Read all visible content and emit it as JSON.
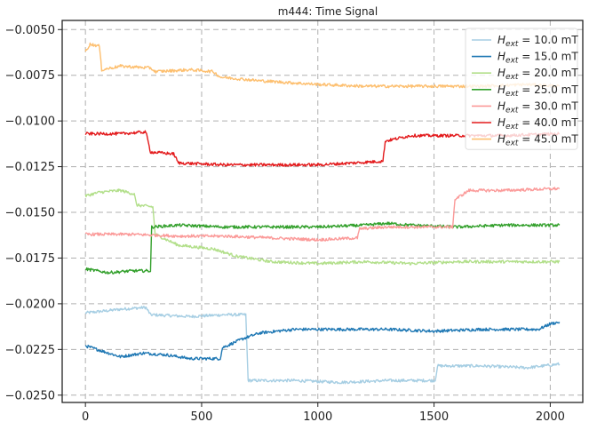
{
  "chart_data": {
    "type": "line",
    "title": "m444: Time Signal",
    "xlabel": "",
    "ylabel": "",
    "xlim": [
      -100,
      2140
    ],
    "ylim": [
      -0.0254,
      -0.0045
    ],
    "xticks": [
      0,
      500,
      1000,
      1500,
      2000
    ],
    "yticks": [
      -0.025,
      -0.0225,
      -0.02,
      -0.0175,
      -0.015,
      -0.0125,
      -0.01,
      -0.0075,
      -0.005
    ],
    "xtick_labels": [
      "0",
      "500",
      "1000",
      "1500",
      "2000"
    ],
    "ytick_labels": [
      "−0.0250",
      "−0.0225",
      "−0.0200",
      "−0.0175",
      "−0.0150",
      "−0.0125",
      "−0.0100",
      "−0.0075",
      "−0.0050"
    ],
    "grid": true,
    "legend_position": "top-right",
    "series": [
      {
        "name": "H_ext = 10.0 mT",
        "label_main": "H",
        "label_sub": "ext",
        "label_rest": " = 10.0 mT",
        "color": "#a6cee3",
        "points": [
          [
            0,
            -0.0205
          ],
          [
            80,
            -0.0204
          ],
          [
            150,
            -0.0203
          ],
          [
            260,
            -0.0202
          ],
          [
            280,
            -0.0206
          ],
          [
            450,
            -0.0207
          ],
          [
            600,
            -0.0206
          ],
          [
            690,
            -0.0206
          ],
          [
            700,
            -0.0242
          ],
          [
            900,
            -0.0242
          ],
          [
            1100,
            -0.0243
          ],
          [
            1300,
            -0.0242
          ],
          [
            1505,
            -0.0242
          ],
          [
            1515,
            -0.0234
          ],
          [
            1700,
            -0.0234
          ],
          [
            1900,
            -0.0235
          ],
          [
            2040,
            -0.0233
          ]
        ]
      },
      {
        "name": "H_ext = 15.0 mT",
        "label_main": "H",
        "label_sub": "ext",
        "label_rest": " = 15.0 mT",
        "color": "#1f78b4",
        "points": [
          [
            0,
            -0.0223
          ],
          [
            50,
            -0.0225
          ],
          [
            100,
            -0.0227
          ],
          [
            150,
            -0.0229
          ],
          [
            250,
            -0.0227
          ],
          [
            350,
            -0.0228
          ],
          [
            450,
            -0.023
          ],
          [
            580,
            -0.023
          ],
          [
            590,
            -0.0224
          ],
          [
            680,
            -0.0219
          ],
          [
            750,
            -0.0216
          ],
          [
            900,
            -0.0214
          ],
          [
            1100,
            -0.0214
          ],
          [
            1300,
            -0.0214
          ],
          [
            1500,
            -0.0215
          ],
          [
            1700,
            -0.0214
          ],
          [
            1950,
            -0.0214
          ],
          [
            2000,
            -0.0211
          ],
          [
            2040,
            -0.021
          ]
        ]
      },
      {
        "name": "H_ext = 20.0 mT",
        "label_main": "H",
        "label_sub": "ext",
        "label_rest": " = 20.0 mT",
        "color": "#b2df8a",
        "points": [
          [
            0,
            -0.0141
          ],
          [
            60,
            -0.0139
          ],
          [
            150,
            -0.0138
          ],
          [
            210,
            -0.014
          ],
          [
            220,
            -0.0146
          ],
          [
            290,
            -0.0147
          ],
          [
            300,
            -0.0162
          ],
          [
            400,
            -0.0168
          ],
          [
            550,
            -0.017
          ],
          [
            650,
            -0.0174
          ],
          [
            800,
            -0.0177
          ],
          [
            1000,
            -0.0178
          ],
          [
            1200,
            -0.0177
          ],
          [
            1400,
            -0.0178
          ],
          [
            1600,
            -0.0177
          ],
          [
            1800,
            -0.0177
          ],
          [
            2040,
            -0.0177
          ]
        ]
      },
      {
        "name": "H_ext = 25.0 mT",
        "label_main": "H",
        "label_sub": "ext",
        "label_rest": " = 25.0 mT",
        "color": "#33a02c",
        "points": [
          [
            0,
            -0.0181
          ],
          [
            100,
            -0.0183
          ],
          [
            200,
            -0.0182
          ],
          [
            280,
            -0.0182
          ],
          [
            285,
            -0.0158
          ],
          [
            400,
            -0.0157
          ],
          [
            600,
            -0.0158
          ],
          [
            800,
            -0.0158
          ],
          [
            1000,
            -0.0158
          ],
          [
            1200,
            -0.0157
          ],
          [
            1300,
            -0.0156
          ],
          [
            1400,
            -0.0157
          ],
          [
            1600,
            -0.0158
          ],
          [
            1800,
            -0.0157
          ],
          [
            2040,
            -0.0157
          ]
        ]
      },
      {
        "name": "H_ext = 30.0 mT",
        "label_main": "H",
        "label_sub": "ext",
        "label_rest": " = 30.0 mT",
        "color": "#fb9a99",
        "points": [
          [
            0,
            -0.0162
          ],
          [
            200,
            -0.0162
          ],
          [
            400,
            -0.0163
          ],
          [
            600,
            -0.0163
          ],
          [
            800,
            -0.0164
          ],
          [
            1000,
            -0.0165
          ],
          [
            1170,
            -0.0164
          ],
          [
            1180,
            -0.0159
          ],
          [
            1300,
            -0.0158
          ],
          [
            1500,
            -0.0158
          ],
          [
            1580,
            -0.0158
          ],
          [
            1590,
            -0.0143
          ],
          [
            1650,
            -0.0138
          ],
          [
            1800,
            -0.0138
          ],
          [
            2040,
            -0.0137
          ]
        ]
      },
      {
        "name": "H_ext = 40.0 mT",
        "label_main": "H",
        "label_sub": "ext",
        "label_rest": " = 40.0 mT",
        "color": "#e31a1c",
        "points": [
          [
            0,
            -0.0107
          ],
          [
            150,
            -0.0107
          ],
          [
            260,
            -0.0106
          ],
          [
            280,
            -0.0117
          ],
          [
            380,
            -0.0118
          ],
          [
            400,
            -0.0123
          ],
          [
            600,
            -0.0124
          ],
          [
            800,
            -0.0124
          ],
          [
            1000,
            -0.0124
          ],
          [
            1150,
            -0.0123
          ],
          [
            1280,
            -0.0122
          ],
          [
            1290,
            -0.0111
          ],
          [
            1400,
            -0.0108
          ],
          [
            1600,
            -0.0108
          ],
          [
            1800,
            -0.0108
          ],
          [
            2040,
            -0.0107
          ]
        ]
      },
      {
        "name": "H_ext = 45.0 mT",
        "label_main": "H",
        "label_sub": "ext",
        "label_rest": " = 45.0 mT",
        "color": "#fdbf6f",
        "points": [
          [
            0,
            -0.0062
          ],
          [
            20,
            -0.0058
          ],
          [
            60,
            -0.0059
          ],
          [
            70,
            -0.0072
          ],
          [
            150,
            -0.007
          ],
          [
            280,
            -0.0071
          ],
          [
            300,
            -0.0073
          ],
          [
            450,
            -0.0072
          ],
          [
            550,
            -0.0073
          ],
          [
            580,
            -0.0076
          ],
          [
            750,
            -0.0078
          ],
          [
            1000,
            -0.008
          ],
          [
            1200,
            -0.0081
          ],
          [
            1500,
            -0.0081
          ],
          [
            1700,
            -0.0081
          ],
          [
            1900,
            -0.008
          ],
          [
            2040,
            -0.0081
          ]
        ]
      }
    ]
  }
}
